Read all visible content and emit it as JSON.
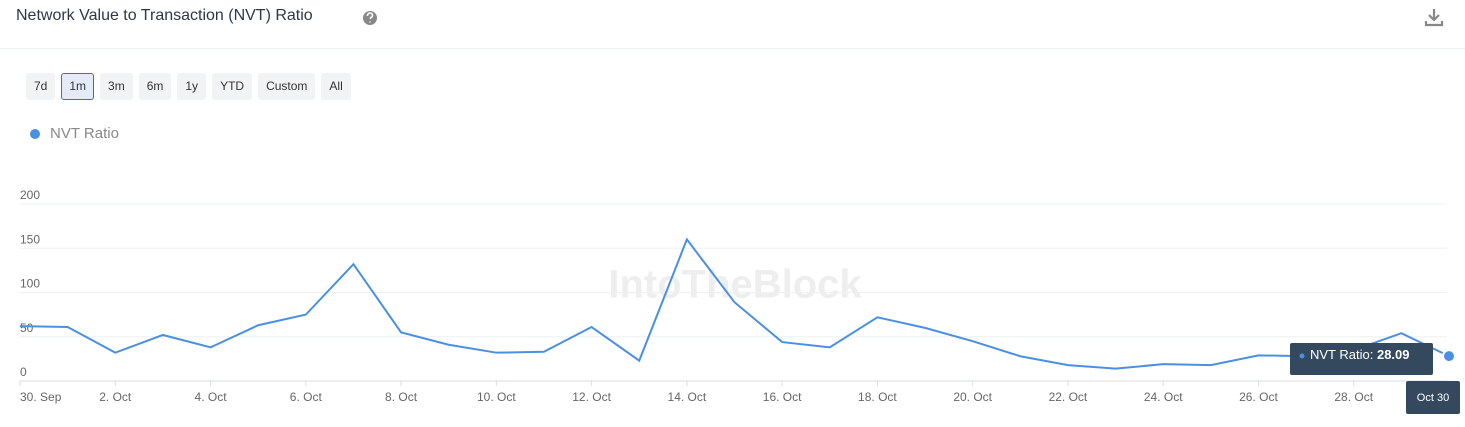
{
  "header": {
    "title": "Network Value to Transaction (NVT) Ratio"
  },
  "range_buttons": [
    "7d",
    "1m",
    "3m",
    "6m",
    "1y",
    "YTD",
    "Custom",
    "All"
  ],
  "active_button": 1,
  "watermark": "IntoTheBlock",
  "chart_data": {
    "type": "line",
    "categories": [
      "30. Sep",
      null,
      "2. Oct",
      null,
      "4. Oct",
      null,
      "6. Oct",
      null,
      "8. Oct",
      null,
      "10. Oct",
      null,
      "12. Oct",
      null,
      "14. Oct",
      null,
      "16. Oct",
      null,
      "18. Oct",
      null,
      "20. Oct",
      null,
      "22. Oct",
      null,
      "24. Oct",
      null,
      "26. Oct",
      null,
      "28. Oct",
      null,
      null
    ],
    "series": [
      {
        "name": "NVT Ratio",
        "color": "#4a90e2",
        "values": [
          62,
          61,
          32,
          52,
          38,
          63,
          75,
          132,
          55,
          41,
          32,
          33,
          61,
          23,
          160,
          89,
          44,
          38,
          72,
          60,
          45,
          28,
          18,
          14,
          19,
          18,
          29,
          28,
          35,
          54,
          28.09
        ]
      }
    ],
    "ylim": [
      0,
      200
    ],
    "yticks": [
      0,
      50,
      100,
      150,
      200
    ],
    "grid": true,
    "tooltip": {
      "label": "NVT Ratio:",
      "date": "Oct 30",
      "index": 30
    }
  }
}
